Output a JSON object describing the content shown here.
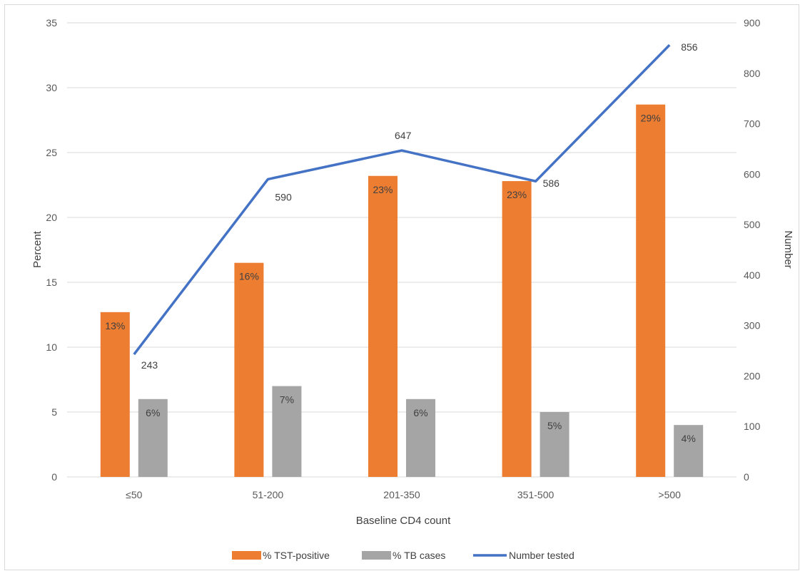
{
  "chart_data": {
    "type": "bar",
    "categories": [
      "≤50",
      "51-200",
      "201-350",
      "351-500",
      ">500"
    ],
    "series": [
      {
        "name": "% TST-positive",
        "kind": "bar",
        "axis": "left",
        "color": "#ED7D31",
        "values": [
          12.7,
          16.5,
          23.2,
          22.8,
          28.7
        ],
        "labels": [
          "13%",
          "16%",
          "23%",
          "23%",
          "29%"
        ]
      },
      {
        "name": "% TB cases",
        "kind": "bar",
        "axis": "left",
        "color": "#A5A5A5",
        "values": [
          6,
          7,
          6,
          5,
          4
        ],
        "labels": [
          "6%",
          "7%",
          "6%",
          "5%",
          "4%"
        ]
      },
      {
        "name": "Number tested",
        "kind": "line",
        "axis": "right",
        "color": "#4472C4",
        "values": [
          243,
          590,
          647,
          586,
          856
        ],
        "labels": [
          "243",
          "590",
          "647",
          "586",
          "856"
        ]
      }
    ],
    "xlabel": "Baseline CD4 count",
    "ylabel": "Percent",
    "y2label": "Number",
    "ylim": [
      0,
      35
    ],
    "y2lim": [
      0,
      900
    ],
    "yticks": [
      0,
      5,
      10,
      15,
      20,
      25,
      30,
      35
    ],
    "y2ticks": [
      0,
      100,
      200,
      300,
      400,
      500,
      600,
      700,
      800,
      900
    ],
    "grid": true,
    "legend": "bottom"
  }
}
